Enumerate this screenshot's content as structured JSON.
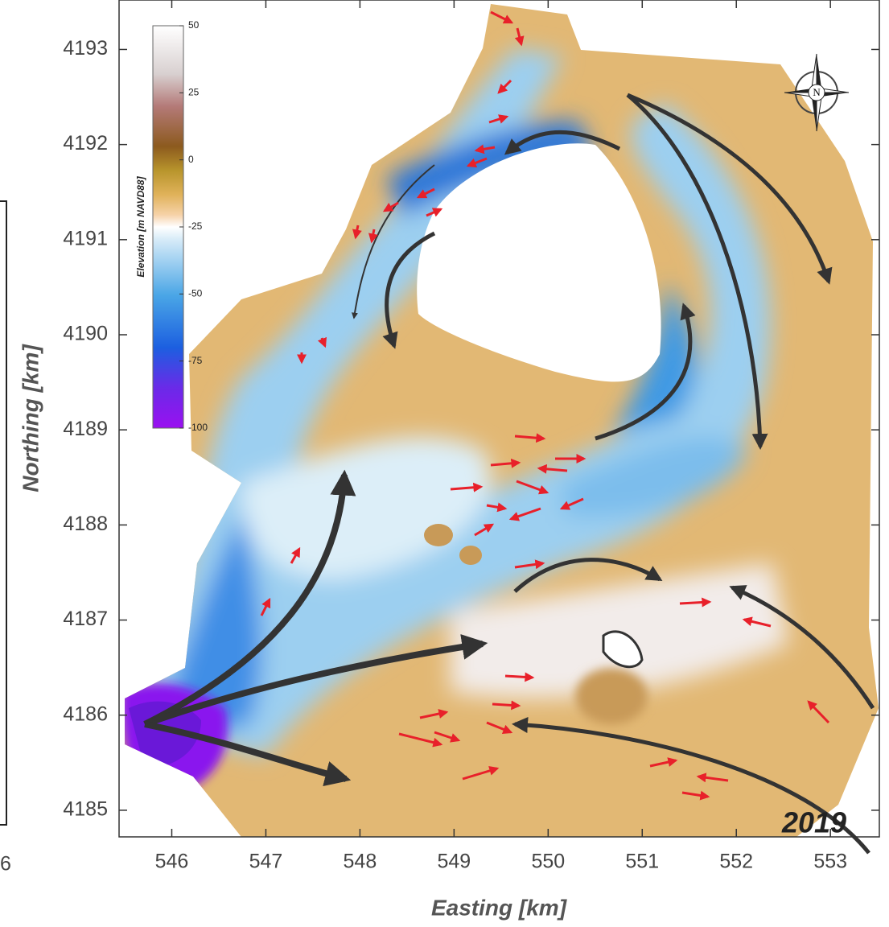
{
  "map": {
    "xlim": [
      545.44,
      553.52
    ],
    "ylim": [
      4184.72,
      4193.52
    ],
    "xticks": [
      546,
      547,
      548,
      549,
      550,
      551,
      552,
      553
    ],
    "yticks": [
      4185,
      4186,
      4187,
      4188,
      4189,
      4190,
      4191,
      4192,
      4193
    ],
    "x_label": "Easting [km]",
    "y_label": "Northing [km]",
    "colorbar": {
      "label": "Elevation [m NAVD88]",
      "lim": [
        -100,
        50
      ],
      "ticks": [
        50,
        25,
        0,
        -25,
        -50,
        -75,
        -100
      ]
    },
    "year_label": "2019",
    "compass_label": "N",
    "left_panel_tick": "6"
  }
}
